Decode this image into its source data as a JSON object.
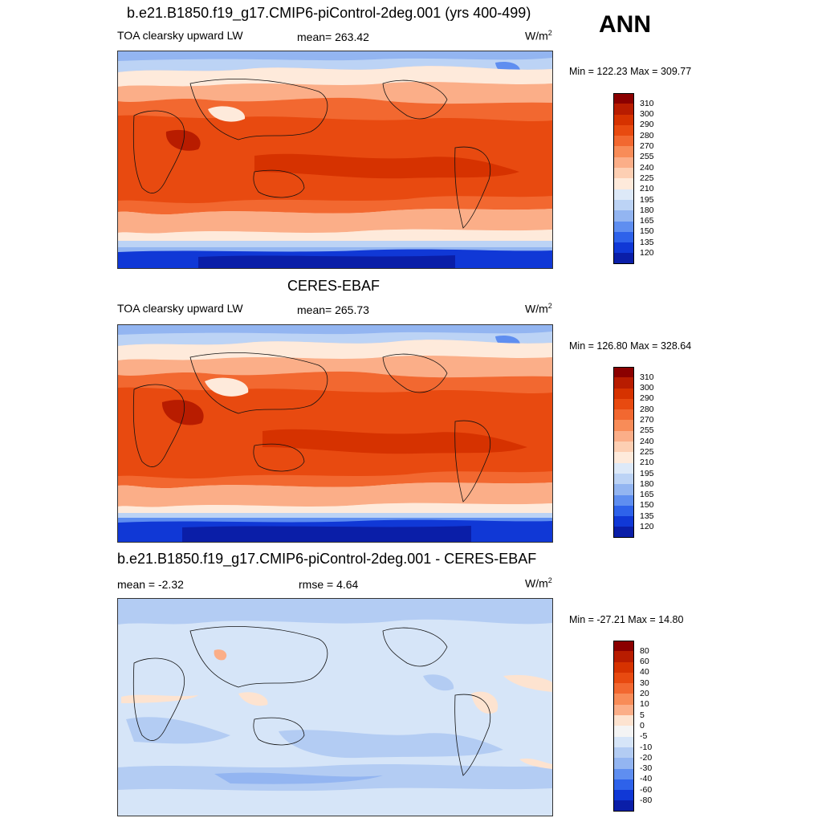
{
  "season": "ANN",
  "units_base": "W/m",
  "units_exp": "2",
  "panels": [
    {
      "title": "b.e21.B1850.f19_g17.CMIP6-piControl-2deg.001 (yrs 400-499)",
      "variable": "TOA clearsky upward LW",
      "stat_left": "",
      "stat_mid": "mean= 263.42",
      "minmax": "Min = 122.23 Max = 309.77"
    },
    {
      "title": "CERES-EBAF",
      "variable": "TOA clearsky upward LW",
      "stat_left": "",
      "stat_mid": "mean= 265.73",
      "minmax": "Min = 126.80 Max = 328.64"
    },
    {
      "title": "b.e21.B1850.f19_g17.CMIP6-piControl-2deg.001 - CERES-EBAF",
      "variable": "",
      "stat_left": "mean =  -2.32",
      "stat_mid": "rmse =   4.64",
      "minmax": "Min = -27.21 Max =  14.80"
    }
  ],
  "colorbar_field": {
    "labels": [
      "310",
      "300",
      "290",
      "280",
      "270",
      "255",
      "240",
      "225",
      "210",
      "195",
      "180",
      "165",
      "150",
      "135",
      "120"
    ],
    "colors": [
      "#8b0000",
      "#b81c00",
      "#d63200",
      "#e84a10",
      "#f26830",
      "#f88c58",
      "#fbae88",
      "#fdcfb3",
      "#feeadb",
      "#dde9f8",
      "#bcd3f5",
      "#93b5f1",
      "#5f8ef0",
      "#2e62ea",
      "#1038d6",
      "#0a1ea8"
    ]
  },
  "colorbar_diff": {
    "labels": [
      "80",
      "60",
      "40",
      "30",
      "20",
      "10",
      "5",
      "0",
      "-5",
      "-10",
      "-20",
      "-30",
      "-40",
      "-60",
      "-80"
    ],
    "colors": [
      "#8b0000",
      "#b81c00",
      "#d63200",
      "#e84a10",
      "#f26830",
      "#f88c58",
      "#fbae88",
      "#fde3d0",
      "#f4f4f4",
      "#d6e5f8",
      "#b3ccf3",
      "#93b5f1",
      "#5f8ef0",
      "#2e62ea",
      "#1038d6",
      "#0a1ea8"
    ]
  }
}
